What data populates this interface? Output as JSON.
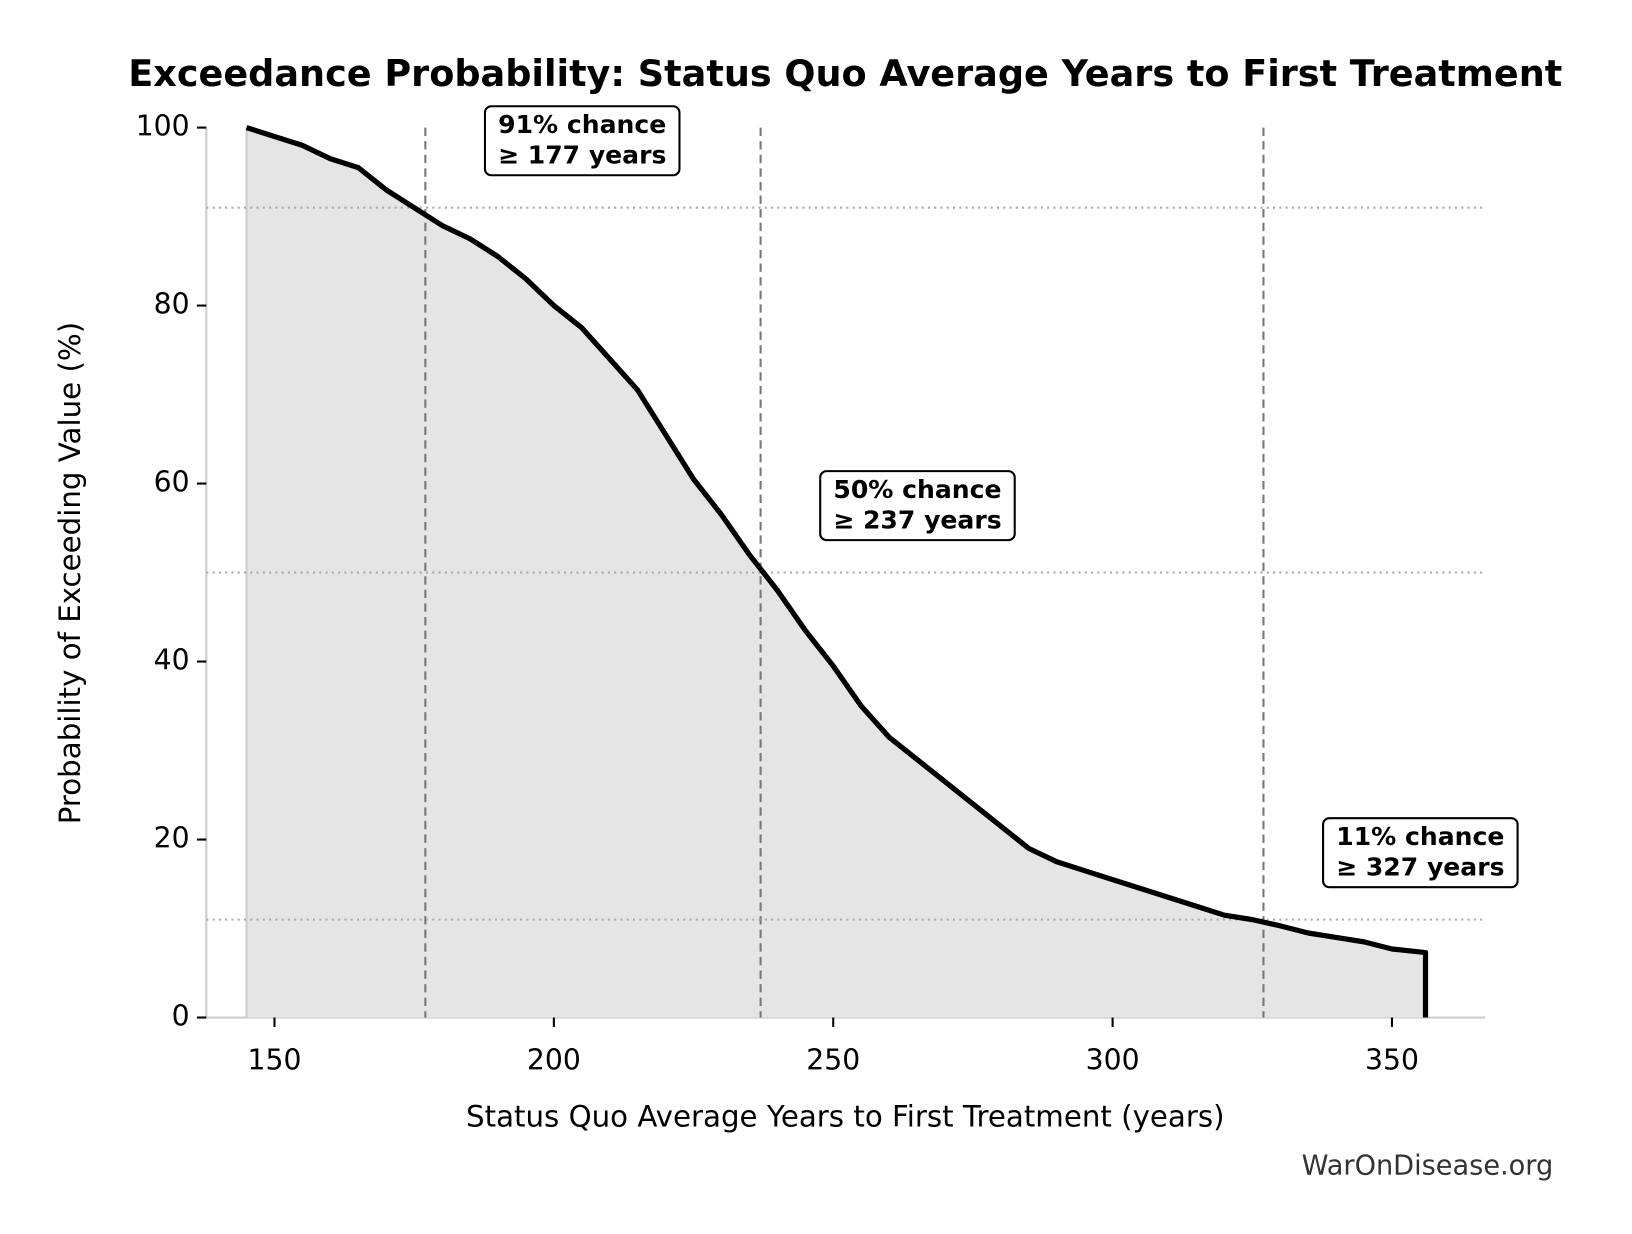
{
  "chart_data": {
    "type": "line",
    "title": "Exceedance Probability: Status Quo Average Years to First Treatment",
    "x_label": "Status Quo Average Years to First Treatment (years)",
    "y_label": "Probability of Exceeding Value (%)",
    "source": "WarOnDisease.org",
    "x": [
      145,
      150,
      155,
      160,
      165,
      170,
      175,
      180,
      185,
      190,
      195,
      200,
      205,
      210,
      215,
      220,
      225,
      230,
      235,
      240,
      245,
      250,
      255,
      260,
      265,
      270,
      275,
      280,
      285,
      290,
      295,
      300,
      305,
      310,
      315,
      320,
      325,
      330,
      335,
      340,
      345,
      350,
      356,
      356
    ],
    "series": [
      {
        "color": "#000000",
        "fill": "#e5e5e5",
        "values": [
          100,
          99,
          98,
          96.5,
          95.5,
          93,
          91,
          89,
          87.5,
          85.5,
          83,
          80,
          77.5,
          74,
          70.5,
          65.5,
          60.5,
          56.5,
          52,
          48,
          43.5,
          39.5,
          35,
          31.5,
          29,
          26.5,
          24,
          21.5,
          19,
          17.5,
          16.5,
          15.5,
          14.5,
          13.5,
          12.5,
          11.5,
          11,
          10.3,
          9.5,
          9,
          8.5,
          7.7,
          7.3,
          0
        ]
      }
    ],
    "xlim": [
      137.8,
      366.7
    ],
    "ylim": [
      0,
      100
    ],
    "xticks": [
      150,
      200,
      250,
      300,
      350
    ],
    "yticks": [
      0,
      20,
      40,
      60,
      80,
      100
    ],
    "reference_points": [
      {
        "x": 177,
        "y": 91,
        "label": [
          "91% chance",
          "≥ 177 years"
        ]
      },
      {
        "x": 237,
        "y": 50,
        "label": [
          "50% chance",
          "≥ 237 years"
        ]
      },
      {
        "x": 327,
        "y": 11,
        "label": [
          "11% chance",
          "≥ 327 years"
        ]
      }
    ]
  }
}
